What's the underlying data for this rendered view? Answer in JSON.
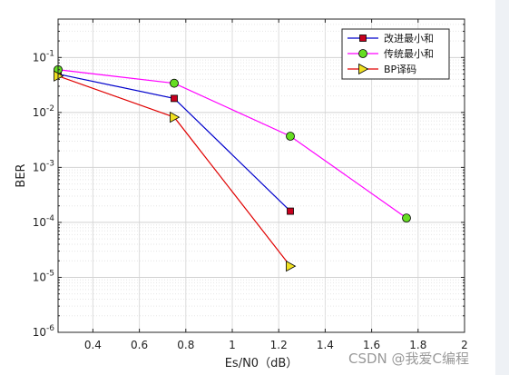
{
  "chart_data": {
    "type": "line",
    "xlabel": "Es/N0（dB）",
    "ylabel": "BER",
    "xlim": [
      0.25,
      2.0
    ],
    "ylim": [
      1e-06,
      0.5
    ],
    "yscale": "log",
    "grid": true,
    "minor_grid": true,
    "legend_position": "top-right",
    "x_ticks": [
      0.4,
      0.6,
      0.8,
      1,
      1.2,
      1.4,
      1.6,
      1.8,
      2
    ],
    "x_tick_labels": [
      "0.4",
      "0.6",
      "0.8",
      "1",
      "1.2",
      "1.4",
      "1.6",
      "1.8",
      "2"
    ],
    "y_tick_labels": [
      {
        "base": "10",
        "exp": "-6"
      },
      {
        "base": "10",
        "exp": "-5"
      },
      {
        "base": "10",
        "exp": "-4"
      },
      {
        "base": "10",
        "exp": "-3"
      },
      {
        "base": "10",
        "exp": "-2"
      },
      {
        "base": "10",
        "exp": "-1"
      }
    ],
    "series": [
      {
        "name": "改进最小和",
        "color": "#0000cc",
        "marker": "square",
        "marker_color": "#c8001e",
        "x": [
          0.25,
          0.75,
          1.25
        ],
        "y": [
          0.05,
          0.018,
          0.00016
        ]
      },
      {
        "name": "传统最小和",
        "color": "#ff00ff",
        "marker": "circle",
        "marker_color": "#66dd22",
        "x": [
          0.25,
          0.75,
          1.25,
          1.75
        ],
        "y": [
          0.06,
          0.034,
          0.0037,
          0.00012
        ]
      },
      {
        "name": "BP译码",
        "color": "#e00000",
        "marker": "triangle-right",
        "marker_color": "#f0e020",
        "x": [
          0.25,
          0.75,
          1.25
        ],
        "y": [
          0.046,
          0.0082,
          1.6e-05
        ]
      }
    ]
  },
  "watermark": "CSDN @我爱C编程"
}
